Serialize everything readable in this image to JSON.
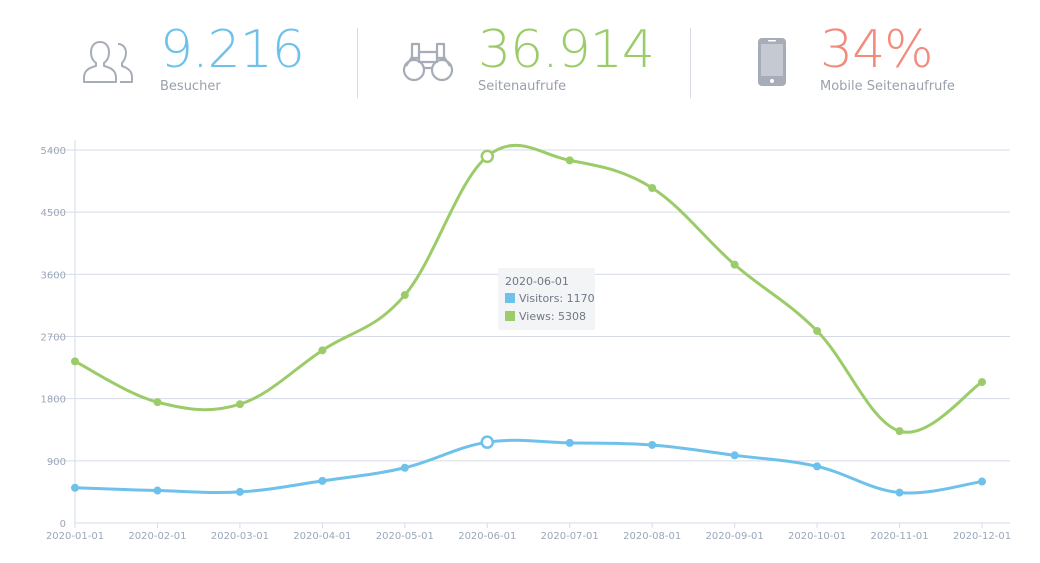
{
  "stats": {
    "visitors": {
      "value": "9.216",
      "label": "Besucher",
      "icon": "users-icon",
      "color": "#6ec1ea"
    },
    "views": {
      "value": "36.914",
      "label": "Seitenaufrufe",
      "icon": "binoculars-icon",
      "color": "#9ccc6a"
    },
    "mobile": {
      "value": "34%",
      "label": "Mobile Seitenaufrufe",
      "icon": "mobile-phone-icon",
      "color": "#f28b7c"
    }
  },
  "colors": {
    "visitors": "#6ec1ea",
    "views": "#9ccc6a",
    "grid": "#d7dbe8",
    "axis_text": "#9aa7b9",
    "icon": "#a6acb8"
  },
  "tooltip": {
    "date": "2020-06-01",
    "visitors_text": "Visitors: 1170",
    "views_text": "Views: 5308"
  },
  "chart_data": {
    "type": "line",
    "x": [
      "2020-01-01",
      "2020-02-01",
      "2020-03-01",
      "2020-04-01",
      "2020-05-01",
      "2020-06-01",
      "2020-07-01",
      "2020-08-01",
      "2020-09-01",
      "2020-10-01",
      "2020-11-01",
      "2020-12-01"
    ],
    "series": [
      {
        "name": "Visitors",
        "color": "#6ec1ea",
        "values": [
          510,
          470,
          450,
          610,
          800,
          1170,
          1160,
          1130,
          980,
          820,
          440,
          600
        ]
      },
      {
        "name": "Views",
        "color": "#9ccc6a",
        "values": [
          2340,
          1750,
          1720,
          2500,
          3300,
          5308,
          5250,
          4850,
          3740,
          2780,
          1330,
          2040
        ]
      }
    ],
    "yticks": [
      0,
      900,
      1800,
      2700,
      3600,
      4500,
      5400
    ],
    "ylim": [
      0,
      5400
    ],
    "grid": true,
    "highlight_index": 5,
    "title": "",
    "xlabel": "",
    "ylabel": ""
  }
}
